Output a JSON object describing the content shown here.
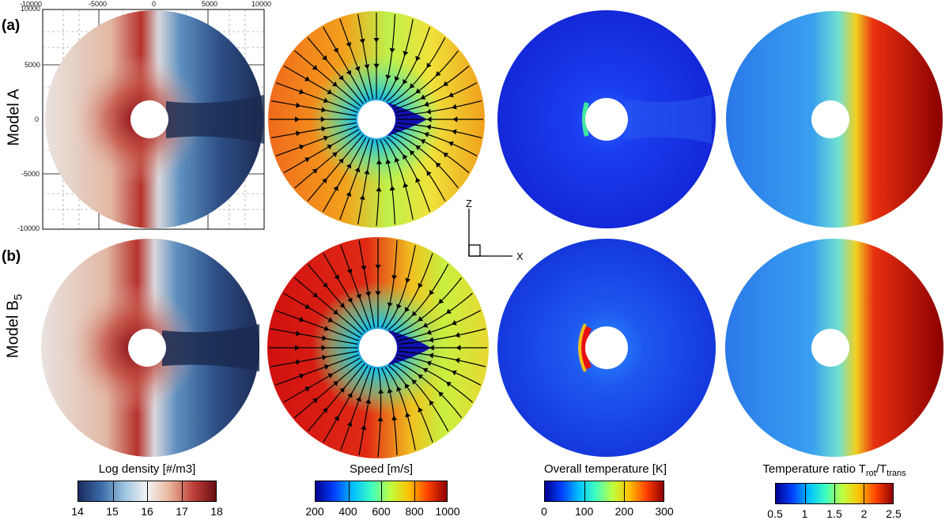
{
  "rows": [
    {
      "panel_label": "(a)",
      "model_label": "Model A"
    },
    {
      "panel_label": "(b)",
      "model_label": "Model B",
      "model_sub": "5"
    }
  ],
  "frame_axis": {
    "x_ticks": [
      "-10000",
      "-5000",
      "0",
      "5000",
      "10000"
    ],
    "y_ticks": [
      "10000",
      "5000",
      "0",
      "-5000",
      "-10000"
    ]
  },
  "coord_axes": {
    "z_label": "Z",
    "x_label": "X"
  },
  "colorbars": [
    {
      "title": "Log density [#/m3]",
      "ticks": [
        "14",
        "15",
        "16",
        "17",
        "18"
      ],
      "colors": [
        "#1b2a5c",
        "#3a6aa8",
        "#9cc4e0",
        "#f3f3f3",
        "#e8b49a",
        "#c0423a",
        "#6a0d12"
      ]
    },
    {
      "title": "Speed [m/s]",
      "ticks": [
        "200",
        "400",
        "600",
        "800",
        "1000"
      ],
      "colors": [
        "#00008f",
        "#0040ff",
        "#00c0ff",
        "#40ffbf",
        "#c0ff40",
        "#ffc000",
        "#ff4000",
        "#8f0000"
      ]
    },
    {
      "title": "Overall temperature [K]",
      "ticks": [
        "0",
        "100",
        "200",
        "300"
      ],
      "colors": [
        "#00008f",
        "#0040ff",
        "#00c0ff",
        "#40ffbf",
        "#c0ff40",
        "#ffc000",
        "#ff4000",
        "#8f0000"
      ]
    },
    {
      "title_main": "Temperature ratio T",
      "title_sub1": "rot",
      "title_mid": "/T",
      "title_sub2": "trans",
      "ticks": [
        "0.5",
        "1",
        "1.5",
        "2",
        "2.5"
      ],
      "colors": [
        "#00008f",
        "#0040ff",
        "#00c0ff",
        "#40ffbf",
        "#c0ff40",
        "#ffc000",
        "#ff4000",
        "#8f0000"
      ]
    }
  ]
}
